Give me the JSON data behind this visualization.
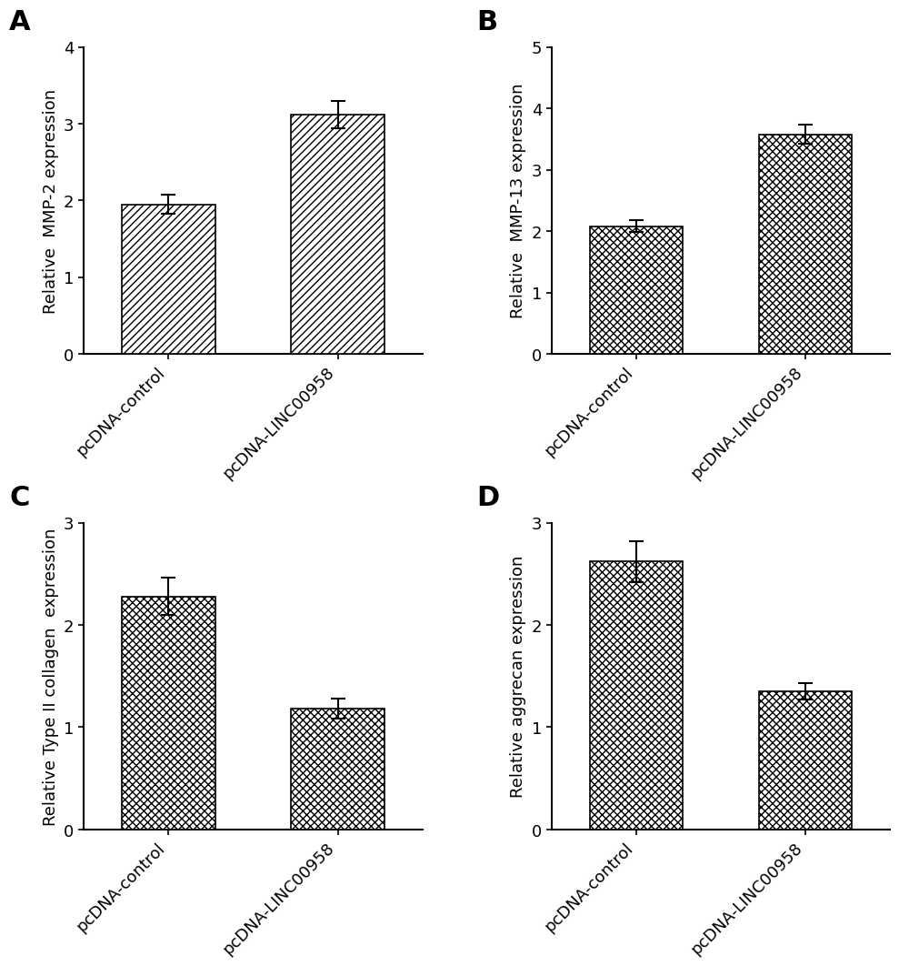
{
  "panels": [
    {
      "label": "A",
      "ylabel": "Relative  MMP-2 expression",
      "categories": [
        "pcDNA-control",
        "pcDNA-LINC00958"
      ],
      "values": [
        1.95,
        3.12
      ],
      "errors": [
        0.12,
        0.18
      ],
      "ylim": [
        0,
        4
      ],
      "yticks": [
        0,
        1,
        2,
        3,
        4
      ],
      "hatch": "////"
    },
    {
      "label": "B",
      "ylabel": "Relative  MMP-13 expression",
      "categories": [
        "pcDNA-control",
        "pcDNA-LINC00958"
      ],
      "values": [
        2.08,
        3.58
      ],
      "errors": [
        0.1,
        0.15
      ],
      "ylim": [
        0,
        5
      ],
      "yticks": [
        0,
        1,
        2,
        3,
        4,
        5
      ],
      "hatch": "xxxx"
    },
    {
      "label": "C",
      "ylabel": "Relative Type II collagen  expression",
      "categories": [
        "pcDNA-control",
        "pcDNA-LINC00958"
      ],
      "values": [
        2.28,
        1.18
      ],
      "errors": [
        0.18,
        0.1
      ],
      "ylim": [
        0,
        3
      ],
      "yticks": [
        0,
        1,
        2,
        3
      ],
      "hatch": "xxxx"
    },
    {
      "label": "D",
      "ylabel": "Relative aggrecan expression",
      "categories": [
        "pcDNA-control",
        "pcDNA-LINC00958"
      ],
      "values": [
        2.62,
        1.35
      ],
      "errors": [
        0.2,
        0.08
      ],
      "ylim": [
        0,
        3
      ],
      "yticks": [
        0,
        1,
        2,
        3
      ],
      "hatch": "xxxx"
    }
  ],
  "bar_color": "white",
  "bar_edgecolor": "black",
  "background_color": "white",
  "label_fontsize": 22,
  "axis_fontsize": 13,
  "tick_fontsize": 13,
  "bar_width": 0.55,
  "capsize": 6
}
